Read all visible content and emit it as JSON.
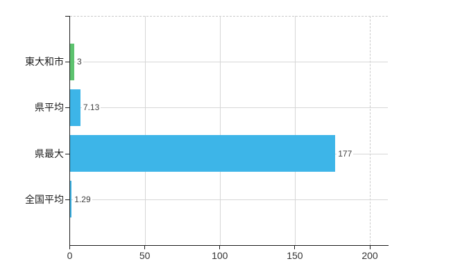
{
  "chart_data": {
    "type": "bar",
    "orientation": "horizontal",
    "title": "",
    "xlabel": "",
    "ylabel": "",
    "categories": [
      "東大和市",
      "県平均",
      "県最大",
      "全国平均"
    ],
    "series": [
      {
        "name": "values",
        "values": [
          3,
          7.13,
          177,
          1.29
        ]
      }
    ],
    "value_labels": [
      "3",
      "7.13",
      "177",
      "1.29"
    ],
    "bar_colors": [
      "#5dc36f",
      "#3db5e8",
      "#3db5e8",
      "#3db5e8"
    ],
    "x_tick_labels": [
      "0",
      "50",
      "100",
      "150",
      "200"
    ],
    "x_tick_values": [
      0,
      50,
      100,
      150,
      200
    ],
    "xlim": [
      0,
      212
    ],
    "grid": "on",
    "legend": "none",
    "plot_border": "dashed-top-and-right"
  },
  "colors": {
    "background": "#ffffff",
    "axis": "#1a1a1a",
    "grid": "#d6d6d6",
    "grid_dashed": "#c9c9c9",
    "category_label": "#1a1a1a",
    "tick_label": "#333333",
    "value_label": "#404040",
    "bar_blue": "#3db5e8",
    "bar_green": "#5dc36f"
  }
}
